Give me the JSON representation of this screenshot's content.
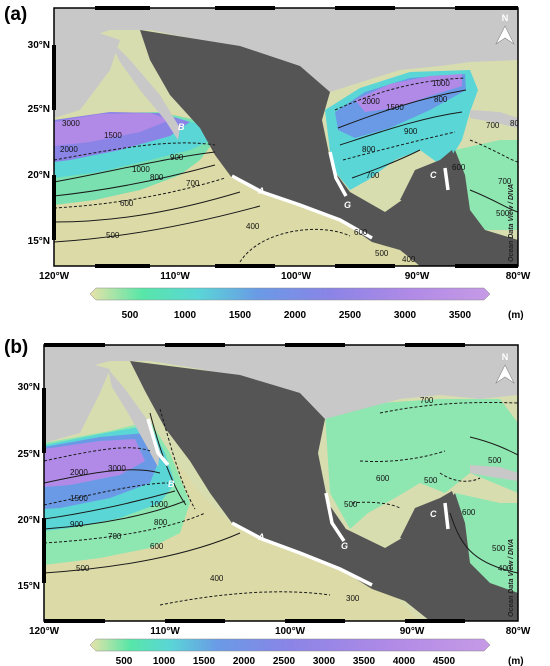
{
  "panels": [
    {
      "label": "(a)",
      "lat_ticks": [
        "30°N",
        "25°N",
        "20°N",
        "15°N"
      ],
      "lon_ticks": [
        "120°W",
        "110°W",
        "100°W",
        "90°W",
        "80°W"
      ],
      "north_label": "N",
      "credit": "Ocean Data View / DIVA",
      "colorbar": {
        "ticks": [
          "500",
          "1000",
          "1500",
          "2000",
          "2500",
          "3000",
          "3500"
        ],
        "unit": "(m)"
      },
      "contour_labels": [
        "3000",
        "1500",
        "2000",
        "900",
        "1000",
        "800",
        "700",
        "600",
        "500",
        "400",
        "2000",
        "1500",
        "1000",
        "800",
        "900",
        "800",
        "700",
        "700",
        "600",
        "700",
        "500",
        "600",
        "500",
        "400",
        "800"
      ],
      "site_labels": [
        "A",
        "B",
        "C",
        "G"
      ]
    },
    {
      "label": "(b)",
      "lat_ticks": [
        "30°N",
        "25°N",
        "20°N",
        "15°N"
      ],
      "lon_ticks": [
        "120°W",
        "110°W",
        "100°W",
        "90°W",
        "80°W"
      ],
      "north_label": "N",
      "credit": "Ocean Data View / DIVA",
      "colorbar": {
        "ticks": [
          "500",
          "1000",
          "1500",
          "2000",
          "2500",
          "3000",
          "3500",
          "4000",
          "4500"
        ],
        "unit": "(m)"
      },
      "contour_labels": [
        "2000",
        "3000",
        "1500",
        "1000",
        "900",
        "800",
        "700",
        "600",
        "500",
        "400",
        "300",
        "700",
        "500",
        "600",
        "500",
        "500",
        "600",
        "500",
        "400"
      ],
      "site_labels": [
        "A",
        "B",
        "C",
        "G"
      ]
    }
  ],
  "colors": {
    "land": "#555555",
    "land_light": "#c8c8c8",
    "ramp": [
      "#e8e2a8",
      "#b8e6a0",
      "#58e6a8",
      "#5ad6d6",
      "#6a9ae6",
      "#8a84e6",
      "#b08ae6",
      "#c69ae6"
    ]
  }
}
